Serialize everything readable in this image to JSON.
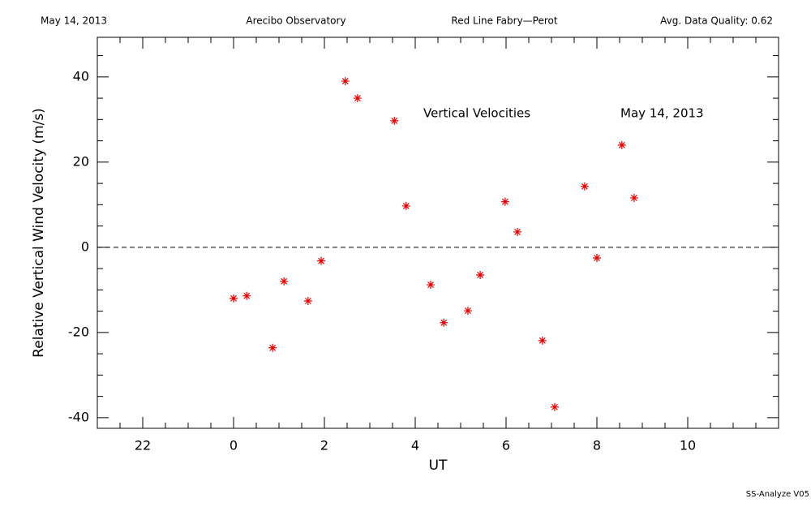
{
  "header": {
    "date": "May 14, 2013",
    "site": "Arecibo Observatory",
    "instrument": "Red Line Fabry—Perot",
    "quality": "Avg. Data Quality: 0.62"
  },
  "footer": "SS-Analyze V05",
  "chart_data": {
    "type": "scatter",
    "xlabel": "UT",
    "ylabel": "Relative Vertical Wind Velocity (m/s)",
    "annotations": [
      "Vertical Velocities",
      "May 14, 2013"
    ],
    "color": "#dd0000",
    "marker": "asterisk",
    "xlim": [
      -3,
      12
    ],
    "ylim": [
      -42.5,
      49.3
    ],
    "xticks": [
      {
        "value": -2,
        "label": "22"
      },
      0,
      2,
      4,
      6,
      8,
      10
    ],
    "xminorticks": [
      -2.5,
      -1.5,
      -1,
      -0.5,
      0.5,
      1,
      1.5,
      2.5,
      3,
      3.5,
      4.5,
      5,
      5.5,
      6.5,
      7,
      7.5,
      8.5,
      9,
      9.5,
      10.5,
      11,
      11.5
    ],
    "yticks": [
      -40,
      -20,
      0,
      20,
      40
    ],
    "yminorticks": [
      -35,
      -30,
      -25,
      -15,
      -10,
      -5,
      5,
      10,
      15,
      25,
      30,
      35,
      45
    ],
    "hline": 0,
    "x": [
      0.0,
      0.29,
      0.86,
      1.11,
      1.64,
      1.93,
      2.46,
      2.73,
      3.54,
      3.8,
      4.34,
      4.63,
      5.16,
      5.43,
      5.98,
      6.25,
      6.8,
      7.07,
      7.73,
      8.0,
      8.55,
      8.82
    ],
    "values": [
      -12.0,
      -11.4,
      -23.6,
      -8.0,
      -12.6,
      -3.2,
      39.0,
      35.0,
      29.7,
      9.7,
      -8.8,
      -17.7,
      -14.9,
      -6.5,
      10.7,
      3.6,
      -21.9,
      -37.5,
      14.3,
      -2.5,
      24.0,
      11.6
    ]
  }
}
